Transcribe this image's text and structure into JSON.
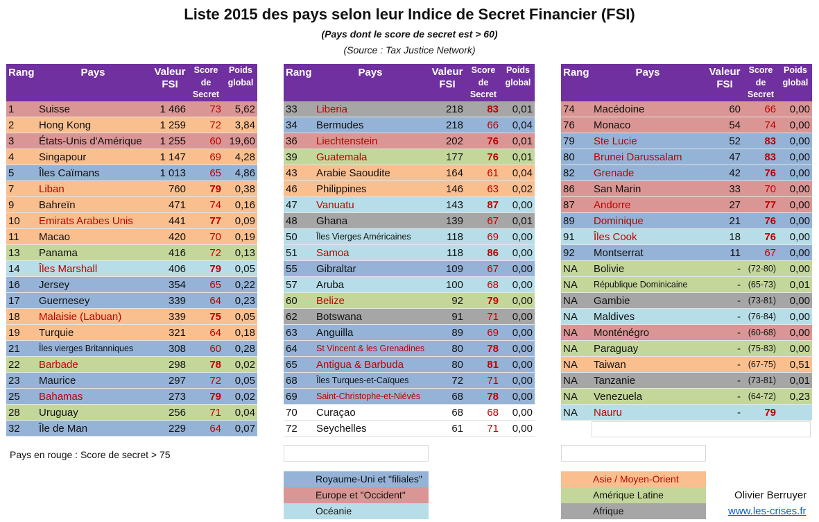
{
  "title": "Liste 2015 des pays selon leur Indice de Secret Financier (FSI)",
  "subtitle": "(Pays dont le score de secret est > 60)",
  "source": "(Source : Tax Justice Network)",
  "headers": {
    "rang": "Rang",
    "pays": "Pays",
    "valeur_1": "Valeur",
    "valeur_2": "FSI",
    "score_1": "Score",
    "score_2": "de",
    "score_3": "Secret",
    "poids_1": "Poids",
    "poids_2": "global"
  },
  "colors": {
    "header": "#7030a0",
    "uk_filiales": "#95b3d7",
    "europe_occident": "#da9694",
    "oceanie": "#b7dee8",
    "asie_moyen_orient": "#fabf8f",
    "amerique_latine": "#c4d79b",
    "afrique": "#a6a6a6",
    "red_text": "#c00000"
  },
  "tables": [
    [
      {
        "rang": "1",
        "pays": "Suisse",
        "valeur": "1 466",
        "score": "73",
        "poids": "5,62",
        "region": "europe_occident",
        "red": false
      },
      {
        "rang": "2",
        "pays": "Hong Kong",
        "valeur": "1 259",
        "score": "72",
        "poids": "3,84",
        "region": "asie_moyen_orient",
        "red": false
      },
      {
        "rang": "3",
        "pays": "États-Unis d'Amérique",
        "valeur": "1 255",
        "score": "60",
        "poids": "19,60",
        "region": "europe_occident",
        "red": false
      },
      {
        "rang": "4",
        "pays": "Singapour",
        "valeur": "1 147",
        "score": "69",
        "poids": "4,28",
        "region": "asie_moyen_orient",
        "red": false
      },
      {
        "rang": "5",
        "pays": "Îles Caïmans",
        "valeur": "1 013",
        "score": "65",
        "poids": "4,86",
        "region": "uk_filiales",
        "red": false
      },
      {
        "rang": "7",
        "pays": "Liban",
        "valeur": "760",
        "score": "79",
        "poids": "0,38",
        "region": "asie_moyen_orient",
        "red": true
      },
      {
        "rang": "9",
        "pays": "Bahreïn",
        "valeur": "471",
        "score": "74",
        "poids": "0,16",
        "region": "asie_moyen_orient",
        "red": false
      },
      {
        "rang": "10",
        "pays": "Emirats Arabes Unis",
        "valeur": "441",
        "score": "77",
        "poids": "0,09",
        "region": "asie_moyen_orient",
        "red": true
      },
      {
        "rang": "11",
        "pays": "Macao",
        "valeur": "420",
        "score": "70",
        "poids": "0,19",
        "region": "asie_moyen_orient",
        "red": false
      },
      {
        "rang": "13",
        "pays": "Panama",
        "valeur": "416",
        "score": "72",
        "poids": "0,13",
        "region": "amerique_latine",
        "red": false
      },
      {
        "rang": "14",
        "pays": "Îles Marshall",
        "valeur": "406",
        "score": "79",
        "poids": "0,05",
        "region": "oceanie",
        "red": true
      },
      {
        "rang": "16",
        "pays": "Jersey",
        "valeur": "354",
        "score": "65",
        "poids": "0,22",
        "region": "uk_filiales",
        "red": false
      },
      {
        "rang": "17",
        "pays": "Guernesey",
        "valeur": "339",
        "score": "64",
        "poids": "0,23",
        "region": "uk_filiales",
        "red": false
      },
      {
        "rang": "18",
        "pays": "Malaisie (Labuan)",
        "valeur": "339",
        "score": "75",
        "poids": "0,05",
        "region": "asie_moyen_orient",
        "red": true
      },
      {
        "rang": "19",
        "pays": "Turquie",
        "valeur": "321",
        "score": "64",
        "poids": "0,18",
        "region": "asie_moyen_orient",
        "red": false
      },
      {
        "rang": "21",
        "pays": "Îles vierges Britanniques",
        "valeur": "308",
        "score": "60",
        "poids": "0,28",
        "region": "uk_filiales",
        "red": false,
        "small": true
      },
      {
        "rang": "22",
        "pays": "Barbade",
        "valeur": "298",
        "score": "78",
        "poids": "0,02",
        "region": "amerique_latine",
        "red": true
      },
      {
        "rang": "23",
        "pays": "Maurice",
        "valeur": "297",
        "score": "72",
        "poids": "0,05",
        "region": "uk_filiales",
        "red": false
      },
      {
        "rang": "25",
        "pays": "Bahamas",
        "valeur": "273",
        "score": "79",
        "poids": "0,02",
        "region": "uk_filiales",
        "red": true
      },
      {
        "rang": "28",
        "pays": "Uruguay",
        "valeur": "256",
        "score": "71",
        "poids": "0,04",
        "region": "amerique_latine",
        "red": false
      },
      {
        "rang": "32",
        "pays": "Île de Man",
        "valeur": "229",
        "score": "64",
        "poids": "0,07",
        "region": "uk_filiales",
        "red": false
      }
    ],
    [
      {
        "rang": "33",
        "pays": "Liberia",
        "valeur": "218",
        "score": "83",
        "poids": "0,01",
        "region": "afrique",
        "red": true
      },
      {
        "rang": "34",
        "pays": "Bermudes",
        "valeur": "218",
        "score": "66",
        "poids": "0,04",
        "region": "uk_filiales",
        "red": false
      },
      {
        "rang": "36",
        "pays": "Liechtenstein",
        "valeur": "202",
        "score": "76",
        "poids": "0,01",
        "region": "europe_occident",
        "red": true
      },
      {
        "rang": "39",
        "pays": "Guatemala",
        "valeur": "177",
        "score": "76",
        "poids": "0,01",
        "region": "amerique_latine",
        "red": true
      },
      {
        "rang": "43",
        "pays": "Arabie Saoudite",
        "valeur": "164",
        "score": "61",
        "poids": "0,04",
        "region": "asie_moyen_orient",
        "red": false
      },
      {
        "rang": "46",
        "pays": "Philippines",
        "valeur": "146",
        "score": "63",
        "poids": "0,02",
        "region": "asie_moyen_orient",
        "red": false
      },
      {
        "rang": "47",
        "pays": "Vanuatu",
        "valeur": "143",
        "score": "87",
        "poids": "0,00",
        "region": "oceanie",
        "red": true
      },
      {
        "rang": "48",
        "pays": "Ghana",
        "valeur": "139",
        "score": "67",
        "poids": "0,01",
        "region": "afrique",
        "red": false
      },
      {
        "rang": "50",
        "pays": "Îles Vierges Américaines",
        "valeur": "118",
        "score": "69",
        "poids": "0,00",
        "region": "oceanie",
        "red": false,
        "small": true
      },
      {
        "rang": "51",
        "pays": "Samoa",
        "valeur": "118",
        "score": "86",
        "poids": "0,00",
        "region": "oceanie",
        "red": true
      },
      {
        "rang": "55",
        "pays": "Gibraltar",
        "valeur": "109",
        "score": "67",
        "poids": "0,00",
        "region": "uk_filiales",
        "red": false
      },
      {
        "rang": "57",
        "pays": "Aruba",
        "valeur": "100",
        "score": "68",
        "poids": "0,00",
        "region": "oceanie",
        "red": false
      },
      {
        "rang": "60",
        "pays": "Belize",
        "valeur": "92",
        "score": "79",
        "poids": "0,00",
        "region": "amerique_latine",
        "red": true
      },
      {
        "rang": "62",
        "pays": "Botswana",
        "valeur": "91",
        "score": "71",
        "poids": "0,00",
        "region": "afrique",
        "red": false
      },
      {
        "rang": "63",
        "pays": "Anguilla",
        "valeur": "89",
        "score": "69",
        "poids": "0,00",
        "region": "uk_filiales",
        "red": false
      },
      {
        "rang": "64",
        "pays": "St Vincent & les Grenadines",
        "valeur": "80",
        "score": "78",
        "poids": "0,00",
        "region": "uk_filiales",
        "red": true,
        "small": true
      },
      {
        "rang": "65",
        "pays": "Antigua & Barbuda",
        "valeur": "80",
        "score": "81",
        "poids": "0,00",
        "region": "uk_filiales",
        "red": true
      },
      {
        "rang": "68",
        "pays": "Îles Turques-et-Caïques",
        "valeur": "72",
        "score": "71",
        "poids": "0,00",
        "region": "uk_filiales",
        "red": false,
        "small": true
      },
      {
        "rang": "69",
        "pays": "Saint-Christophe-et-Niévès",
        "valeur": "68",
        "score": "78",
        "poids": "0,00",
        "region": "uk_filiales",
        "red": true,
        "small": true
      },
      {
        "rang": "70",
        "pays": "Curaçao",
        "valeur": "68",
        "score": "68",
        "poids": "0,00",
        "region": "white",
        "red": false
      },
      {
        "rang": "72",
        "pays": "Seychelles",
        "valeur": "61",
        "score": "71",
        "poids": "0,00",
        "region": "white",
        "red": false
      }
    ],
    [
      {
        "rang": "74",
        "pays": "Macédoine",
        "valeur": "60",
        "score": "66",
        "poids": "0,00",
        "region": "europe_occident",
        "red": false
      },
      {
        "rang": "76",
        "pays": "Monaco",
        "valeur": "54",
        "score": "74",
        "poids": "0,00",
        "region": "europe_occident",
        "red": false
      },
      {
        "rang": "79",
        "pays": "Ste Lucie",
        "valeur": "52",
        "score": "83",
        "poids": "0,00",
        "region": "uk_filiales",
        "red": true
      },
      {
        "rang": "80",
        "pays": "Brunei Darussalam",
        "valeur": "47",
        "score": "83",
        "poids": "0,00",
        "region": "uk_filiales",
        "red": true
      },
      {
        "rang": "82",
        "pays": "Grenade",
        "valeur": "42",
        "score": "76",
        "poids": "0,00",
        "region": "uk_filiales",
        "red": true
      },
      {
        "rang": "86",
        "pays": "San Marin",
        "valeur": "33",
        "score": "70",
        "poids": "0,00",
        "region": "europe_occident",
        "red": false
      },
      {
        "rang": "87",
        "pays": "Andorre",
        "valeur": "27",
        "score": "77",
        "poids": "0,00",
        "region": "europe_occident",
        "red": true
      },
      {
        "rang": "89",
        "pays": "Dominique",
        "valeur": "21",
        "score": "76",
        "poids": "0,00",
        "region": "uk_filiales",
        "red": true
      },
      {
        "rang": "91",
        "pays": "Îles Cook",
        "valeur": "18",
        "score": "76",
        "poids": "0,00",
        "region": "oceanie",
        "red": true
      },
      {
        "rang": "92",
        "pays": "Montserrat",
        "valeur": "11",
        "score": "67",
        "poids": "0,00",
        "region": "uk_filiales",
        "red": false
      },
      {
        "rang": "NA",
        "pays": "Bolivie",
        "valeur": "-",
        "score": "(72-80)",
        "poids": "0,00",
        "region": "amerique_latine",
        "red": false,
        "range": true
      },
      {
        "rang": "NA",
        "pays": "République Dominicaine",
        "valeur": "-",
        "score": "(65-73)",
        "poids": "0,01",
        "region": "amerique_latine",
        "red": false,
        "range": true,
        "small": true
      },
      {
        "rang": "NA",
        "pays": "Gambie",
        "valeur": "-",
        "score": "(73-81)",
        "poids": "0,00",
        "region": "afrique",
        "red": false,
        "range": true
      },
      {
        "rang": "NA",
        "pays": "Maldives",
        "valeur": "-",
        "score": "(76-84)",
        "poids": "0,00",
        "region": "oceanie",
        "red": false,
        "range": true
      },
      {
        "rang": "NA",
        "pays": "Monténégro",
        "valeur": "-",
        "score": "(60-68)",
        "poids": "0,00",
        "region": "europe_occident",
        "red": false,
        "range": true
      },
      {
        "rang": "NA",
        "pays": "Paraguay",
        "valeur": "-",
        "score": "(75-83)",
        "poids": "0,00",
        "region": "amerique_latine",
        "red": false,
        "range": true
      },
      {
        "rang": "NA",
        "pays": "Taiwan",
        "valeur": "-",
        "score": "(67-75)",
        "poids": "0,51",
        "region": "asie_moyen_orient",
        "red": false,
        "range": true
      },
      {
        "rang": "NA",
        "pays": "Tanzanie",
        "valeur": "-",
        "score": "(73-81)",
        "poids": "0,01",
        "region": "afrique",
        "red": false,
        "range": true
      },
      {
        "rang": "NA",
        "pays": "Venezuela",
        "valeur": "-",
        "score": "(64-72)",
        "poids": "0,23",
        "region": "amerique_latine",
        "red": false,
        "range": true
      },
      {
        "rang": "NA",
        "pays": "Nauru",
        "valeur": "-",
        "score": "79",
        "poids": "",
        "region": "oceanie",
        "red": true
      }
    ]
  ],
  "note": "Pays en rouge : Score de secret > 75",
  "legend": {
    "uk_filiales": "Royaume-Uni et \"filiales\"",
    "europe_occident": "Europe et \"Occident\"",
    "oceanie": "Océanie",
    "asie_moyen_orient": "Asie / Moyen-Orient",
    "amerique_latine": "Amérique Latine",
    "afrique": "Afrique"
  },
  "author": "Olivier Berruyer",
  "website": "www.les-crises.fr"
}
